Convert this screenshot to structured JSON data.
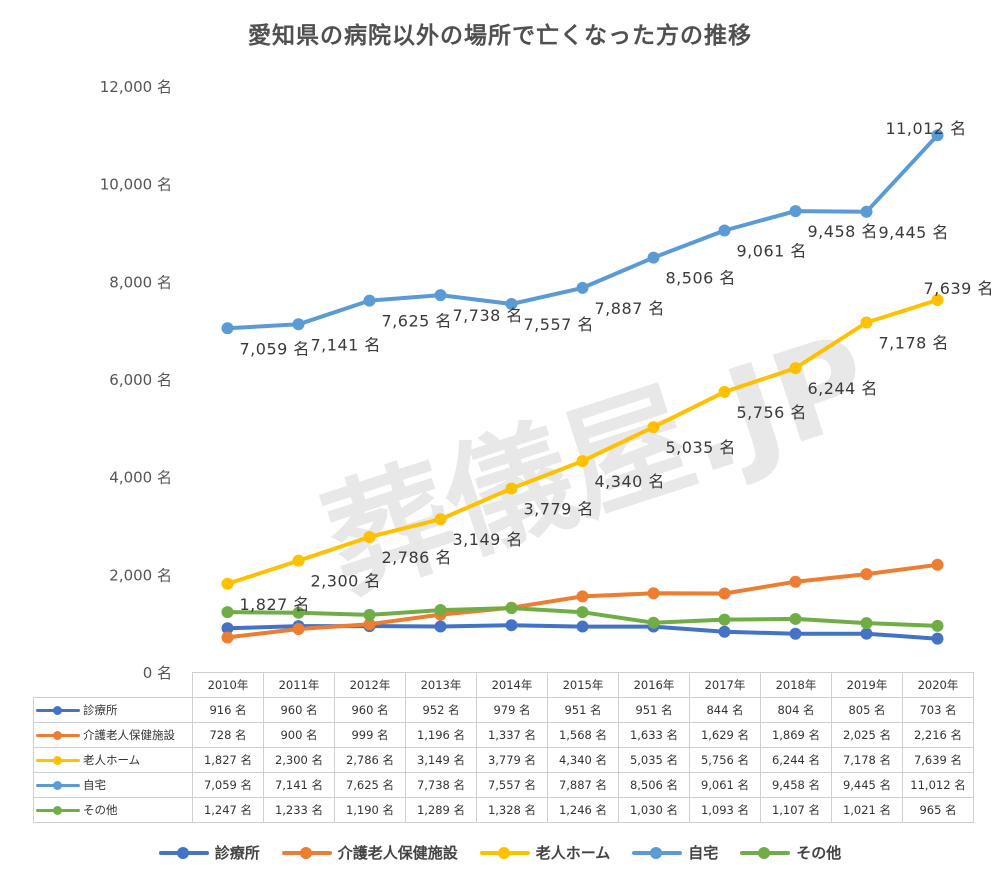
{
  "chart_data": {
    "type": "line",
    "title": "愛知県の病院以外の場所で亡くなった方の推移",
    "watermark": "葬儀屋.JP",
    "unit": "名",
    "categories": [
      "2010年",
      "2011年",
      "2012年",
      "2013年",
      "2014年",
      "2015年",
      "2016年",
      "2017年",
      "2018年",
      "2019年",
      "2020年"
    ],
    "ylim": [
      0,
      12000
    ],
    "yticks": [
      0,
      2000,
      4000,
      6000,
      8000,
      10000,
      12000
    ],
    "ytick_labels": [
      "0 名",
      "2,000 名",
      "4,000 名",
      "6,000 名",
      "8,000 名",
      "10,000 名",
      "12,000 名"
    ],
    "series": [
      {
        "name": "診療所",
        "color": "#4472c4",
        "values": [
          916,
          960,
          960,
          952,
          979,
          951,
          951,
          844,
          804,
          805,
          703
        ],
        "labels": [
          "916 名",
          "960 名",
          "960 名",
          "952 名",
          "979 名",
          "951 名",
          "951 名",
          "844 名",
          "804 名",
          "805 名",
          "703 名"
        ],
        "show_point_labels": false
      },
      {
        "name": "介護老人保健施設",
        "color": "#ed7d31",
        "values": [
          728,
          900,
          999,
          1196,
          1337,
          1568,
          1633,
          1629,
          1869,
          2025,
          2216
        ],
        "labels": [
          "728 名",
          "900 名",
          "999 名",
          "1,196 名",
          "1,337 名",
          "1,568 名",
          "1,633 名",
          "1,629 名",
          "1,869 名",
          "2,025 名",
          "2,216 名"
        ],
        "show_point_labels": false
      },
      {
        "name": "老人ホーム",
        "color": "#ffc000",
        "values": [
          1827,
          2300,
          2786,
          3149,
          3779,
          4340,
          5035,
          5756,
          6244,
          7178,
          7639
        ],
        "labels": [
          "1,827 名",
          "2,300 名",
          "2,786 名",
          "3,149 名",
          "3,779 名",
          "4,340 名",
          "5,035 名",
          "5,756 名",
          "6,244 名",
          "7,178 名",
          "7,639 名"
        ],
        "show_point_labels": true
      },
      {
        "name": "自宅",
        "color": "#5b9bd5",
        "values": [
          7059,
          7141,
          7625,
          7738,
          7557,
          7887,
          8506,
          9061,
          9458,
          9445,
          11012
        ],
        "labels": [
          "7,059 名",
          "7,141 名",
          "7,625 名",
          "7,738 名",
          "7,557 名",
          "7,887 名",
          "8,506 名",
          "9,061 名",
          "9,458 名",
          "9,445 名",
          "11,012 名"
        ],
        "show_point_labels": true
      },
      {
        "name": "その他",
        "color": "#70ad47",
        "values": [
          1247,
          1233,
          1190,
          1289,
          1328,
          1246,
          1030,
          1093,
          1107,
          1021,
          965
        ],
        "labels": [
          "1,247 名",
          "1,233 名",
          "1,190 名",
          "1,289 名",
          "1,328 名",
          "1,246 名",
          "1,030 名",
          "1,093 名",
          "1,107 名",
          "1,021 名",
          "965 名"
        ],
        "show_point_labels": false
      }
    ]
  }
}
